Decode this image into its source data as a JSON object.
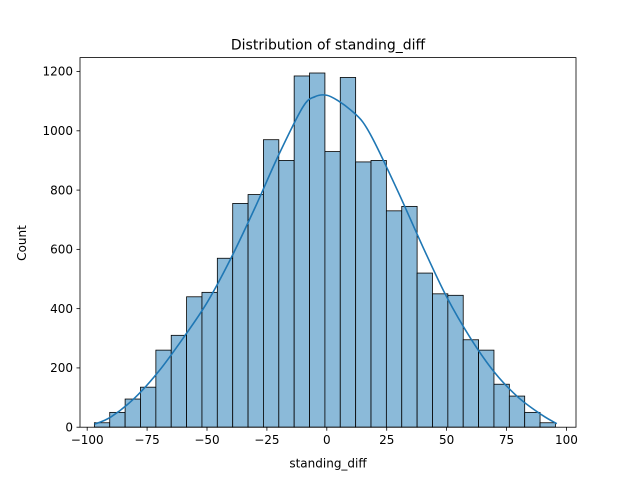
{
  "chart_data": {
    "type": "bar",
    "title": "Distribution of standing_diff",
    "xlabel": "standing_diff",
    "ylabel": "Count",
    "xlim": [
      -103,
      104
    ],
    "ylim": [
      0,
      1247
    ],
    "xticks": [
      -100,
      -75,
      -50,
      -25,
      0,
      25,
      50,
      75,
      100
    ],
    "yticks": [
      0,
      200,
      400,
      600,
      800,
      1000,
      1200
    ],
    "grid": false,
    "bin_edges": [
      -97,
      -90.59,
      -84.17,
      -77.76,
      -71.34,
      -64.93,
      -58.52,
      -52.1,
      -45.69,
      -39.27,
      -32.86,
      -26.45,
      -20.03,
      -13.62,
      -7.2,
      -0.79,
      5.62,
      12.04,
      18.45,
      24.86,
      31.28,
      37.69,
      44.11,
      50.52,
      56.93,
      63.35,
      69.76,
      76.18,
      82.59,
      89.0,
      95.42
    ],
    "counts": [
      15,
      50,
      95,
      135,
      260,
      310,
      440,
      455,
      570,
      755,
      785,
      970,
      900,
      1185,
      1195,
      930,
      1180,
      895,
      900,
      730,
      745,
      520,
      450,
      445,
      295,
      260,
      145,
      105,
      50,
      15
    ],
    "kde": {
      "x": [
        -97,
        -90,
        -80,
        -70,
        -60,
        -50,
        -40,
        -30,
        -20,
        -10,
        -5,
        0,
        5,
        10,
        15,
        20,
        30,
        40,
        50,
        60,
        70,
        80,
        90,
        96
      ],
      "y": [
        10,
        35,
        100,
        190,
        300,
        420,
        570,
        740,
        920,
        1080,
        1115,
        1120,
        1100,
        1070,
        1030,
        960,
        790,
        610,
        440,
        300,
        185,
        100,
        40,
        12
      ]
    },
    "colors": {
      "bar_fill": "#8bbad9",
      "bar_edge": "#000000",
      "kde_line": "#1f77b4"
    }
  }
}
